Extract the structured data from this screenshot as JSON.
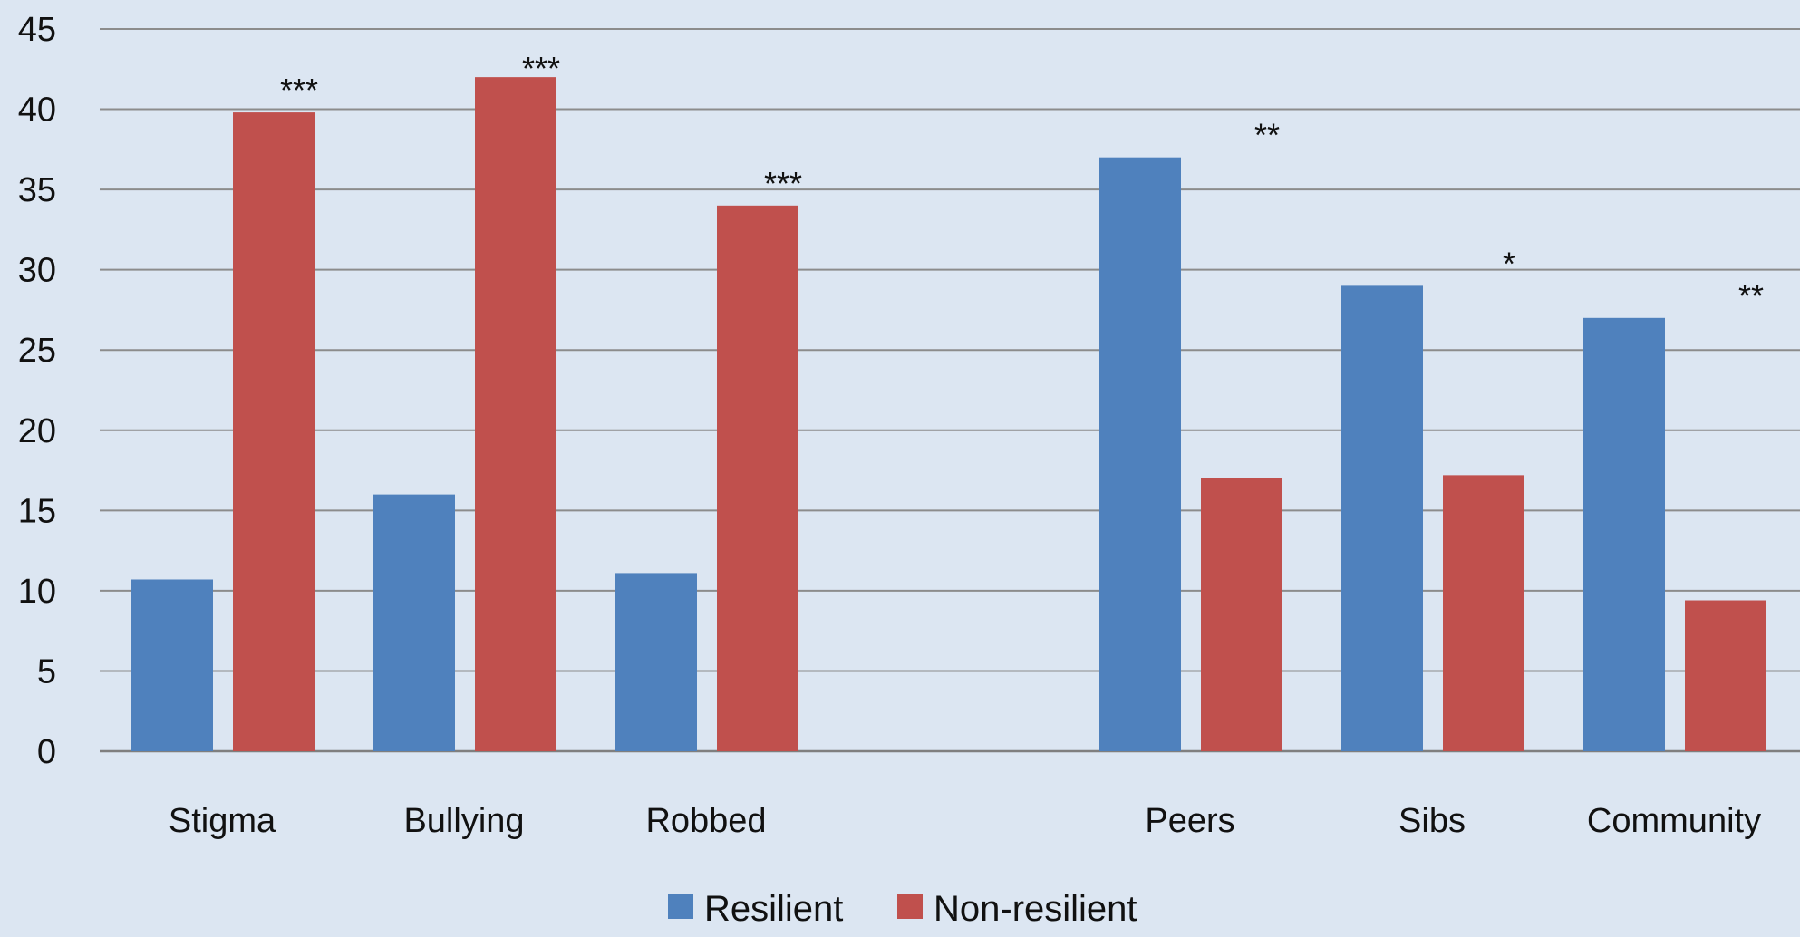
{
  "chart_data": {
    "type": "bar",
    "title": "",
    "xlabel": "",
    "ylabel": "",
    "ylim": [
      0,
      45
    ],
    "yticks": [
      0,
      5,
      10,
      15,
      20,
      25,
      30,
      35,
      40,
      45
    ],
    "grid": true,
    "legend_position": "bottom",
    "categories": [
      "Stigma",
      "Bullying",
      "Robbed",
      "",
      "Peers",
      "Sibs",
      "Community"
    ],
    "series": [
      {
        "name": "Resilient",
        "color": "#4f81bd",
        "values": [
          10.7,
          16,
          11.1,
          null,
          37,
          29,
          27
        ]
      },
      {
        "name": "Non-resilient",
        "color": "#c0504d",
        "values": [
          39.8,
          42,
          34,
          null,
          17,
          17.2,
          9.4
        ]
      }
    ],
    "annotations": [
      "***",
      "***",
      "***",
      "",
      "**",
      "*",
      "**"
    ]
  }
}
